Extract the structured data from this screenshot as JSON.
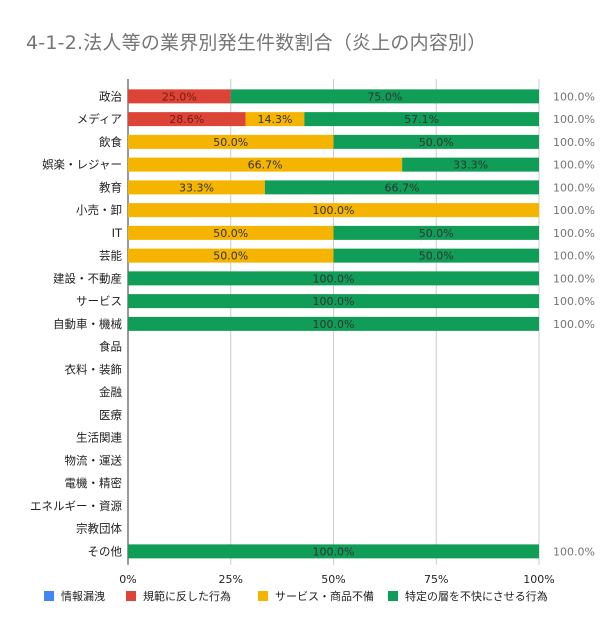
{
  "chart_data": {
    "type": "bar",
    "orientation": "horizontal",
    "stacked": "percent",
    "title": "4-1-2.法人等の業界別発生件数割合（炎上の内容別）",
    "categories": [
      "政治",
      "メディア",
      "飲食",
      "娯楽・レジャー",
      "教育",
      "小売・卸",
      "IT",
      "芸能",
      "建設・不動産",
      "サービス",
      "自動車・機械",
      "食品",
      "衣料・装飾",
      "金融",
      "医療",
      "生活関連",
      "物流・運送",
      "電機・精密",
      "エネルギー・資源",
      "宗教団体",
      "その他"
    ],
    "series": [
      {
        "name": "情報漏洩",
        "color": "#4285F4",
        "values": [
          0,
          0,
          0,
          0,
          0,
          0,
          0,
          0,
          0,
          0,
          0,
          null,
          null,
          null,
          null,
          null,
          null,
          null,
          null,
          null,
          0
        ]
      },
      {
        "name": "規範に反した行為",
        "color": "#DB4437",
        "values": [
          25.0,
          28.6,
          0,
          0,
          0,
          0,
          0,
          0,
          0,
          0,
          0,
          null,
          null,
          null,
          null,
          null,
          null,
          null,
          null,
          null,
          0
        ]
      },
      {
        "name": "サービス・商品不備",
        "color": "#F4B400",
        "values": [
          0,
          14.3,
          50.0,
          66.7,
          33.3,
          100.0,
          50.0,
          50.0,
          0,
          0,
          0,
          null,
          null,
          null,
          null,
          null,
          null,
          null,
          null,
          null,
          0
        ]
      },
      {
        "name": "特定の層を不快にさせる行為",
        "color": "#0F9D58",
        "values": [
          75.0,
          57.1,
          50.0,
          33.3,
          66.7,
          0,
          50.0,
          50.0,
          100.0,
          100.0,
          100.0,
          null,
          null,
          null,
          null,
          null,
          null,
          null,
          null,
          null,
          100.0
        ]
      }
    ],
    "segment_labels": [
      [
        "25.0%",
        "75.0%"
      ],
      [
        "28.6%",
        "14.3%",
        "57.1%"
      ],
      [
        "50.0%",
        "50.0%"
      ],
      [
        "66.7%",
        "33.3%"
      ],
      [
        "33.3%",
        "66.7%"
      ],
      [
        "100.0%"
      ],
      [
        "50.0%",
        "50.0%"
      ],
      [
        "50.0%",
        "50.0%"
      ],
      [
        "100.0%"
      ],
      [
        "100.0%"
      ],
      [
        "100.0%"
      ],
      [],
      [],
      [],
      [],
      [],
      [],
      [],
      [],
      [],
      [
        "100.0%"
      ]
    ],
    "totals": [
      "100.0%",
      "100.0%",
      "100.0%",
      "100.0%",
      "100.0%",
      "100.0%",
      "100.0%",
      "100.0%",
      "100.0%",
      "100.0%",
      "100.0%",
      "",
      "",
      "",
      "",
      "",
      "",
      "",
      "",
      "",
      "100.0%"
    ],
    "x_ticks": [
      "0%",
      "25%",
      "50%",
      "75%",
      "100%"
    ],
    "xlim": [
      0,
      100
    ],
    "grid": true,
    "legend_position": "bottom"
  }
}
